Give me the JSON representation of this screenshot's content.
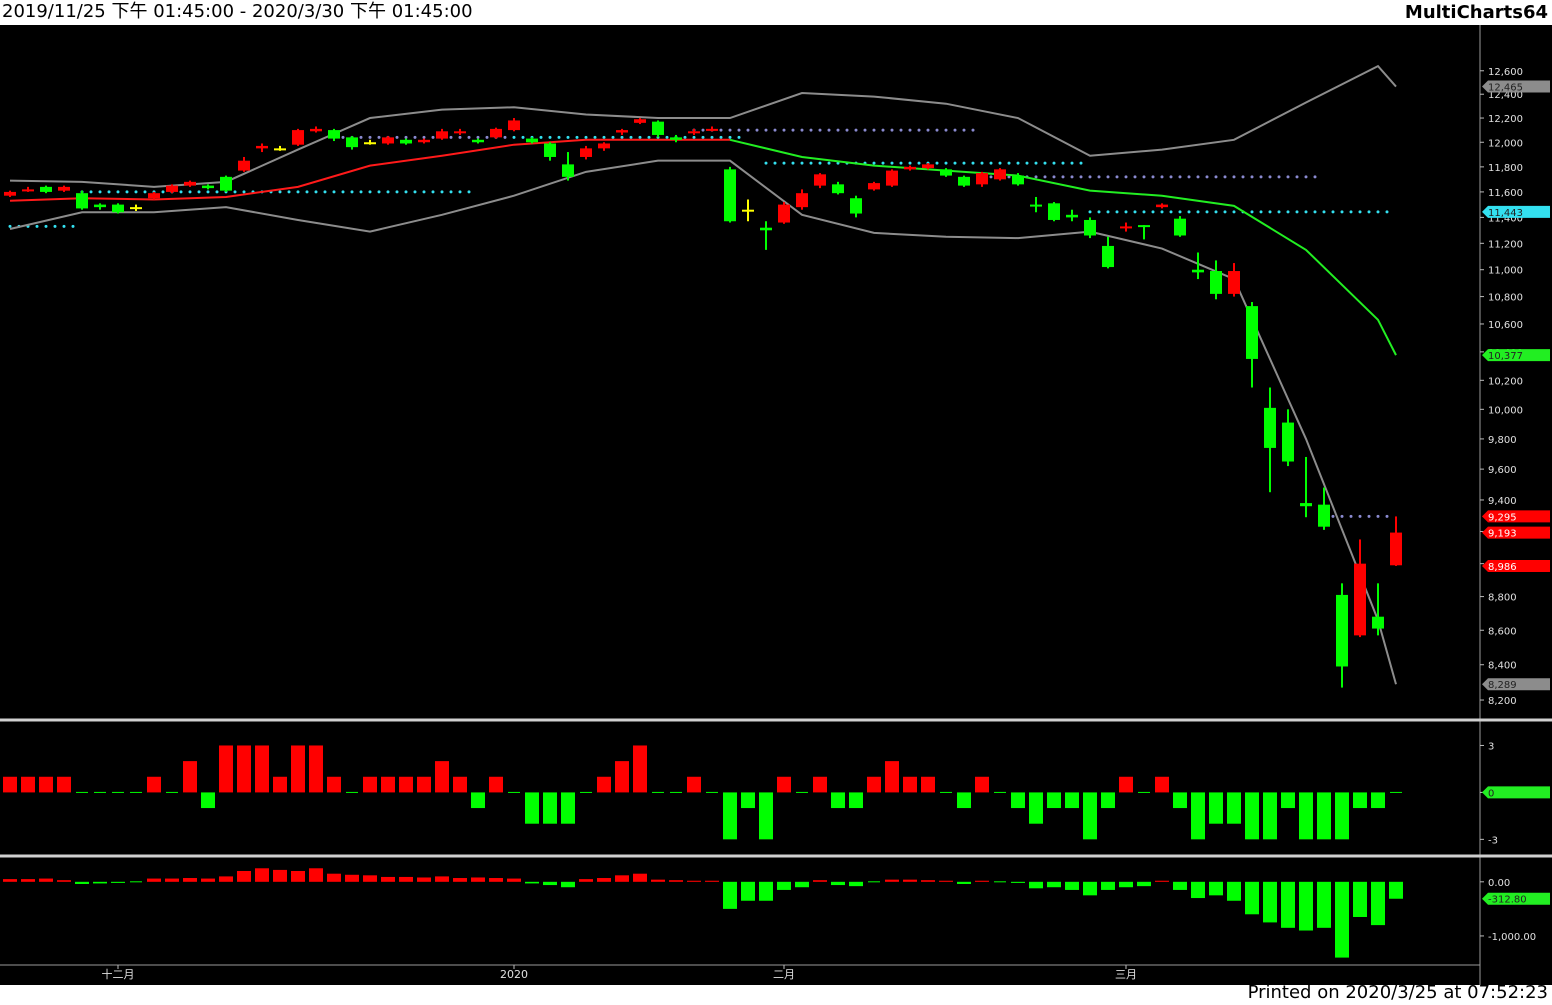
{
  "header": {
    "range": "2019/11/25 下午 01:45:00 - 2020/3/30 下午 01:45:00",
    "app": "MultiCharts64"
  },
  "footer": "Printed on 2020/3/25 at 07:52:23",
  "chart_data": [
    {
      "type": "candlestick",
      "log_scale": true,
      "ylim": [
        8100,
        13000
      ],
      "yticks": [
        {
          "value": 12600,
          "label": "12,600"
        },
        {
          "value": 12400,
          "label": "12,400"
        },
        {
          "value": 12200,
          "label": "12,200"
        },
        {
          "value": 12000,
          "label": "12,000"
        },
        {
          "value": 11800,
          "label": "11,800"
        },
        {
          "value": 11600,
          "label": "11,600"
        },
        {
          "value": 11400,
          "label": "11,400"
        },
        {
          "value": 11200,
          "label": "11,200"
        },
        {
          "value": 11000,
          "label": "11,000"
        },
        {
          "value": 10800,
          "label": "10,800"
        },
        {
          "value": 10600,
          "label": "10,600"
        },
        {
          "value": 10400,
          "label": "10,400"
        },
        {
          "value": 10200,
          "label": "10,200"
        },
        {
          "value": 10000,
          "label": "10,000"
        },
        {
          "value": 9800,
          "label": "9,800"
        },
        {
          "value": 9600,
          "label": "9,600"
        },
        {
          "value": 9400,
          "label": "9,400"
        },
        {
          "value": 9200,
          "label": "9,200"
        },
        {
          "value": 9000,
          "label": "9,000"
        },
        {
          "value": 8800,
          "label": "8,800"
        },
        {
          "value": 8600,
          "label": "8,600"
        },
        {
          "value": 8400,
          "label": "8,400"
        },
        {
          "value": 8200,
          "label": "8,200"
        }
      ],
      "categories": [
        null,
        null,
        null,
        null,
        null,
        null,
        "十二月",
        null,
        null,
        null,
        null,
        null,
        null,
        null,
        null,
        null,
        null,
        null,
        null,
        null,
        null,
        null,
        null,
        null,
        null,
        null,
        null,
        null,
        "2020",
        null,
        null,
        null,
        null,
        null,
        null,
        null,
        null,
        null,
        null,
        null,
        null,
        null,
        null,
        "二月",
        null,
        null,
        null,
        null,
        null,
        null,
        null,
        null,
        null,
        null,
        null,
        null,
        null,
        null,
        null,
        null,
        null,
        null,
        "三月",
        null,
        null,
        null,
        null,
        null,
        null,
        null,
        null,
        null,
        null,
        null,
        null,
        null,
        null,
        null
      ],
      "open": [
        11570,
        11610,
        11640,
        11610,
        11590,
        11500,
        11500,
        11480,
        11550,
        11600,
        11650,
        11650,
        11720,
        11770,
        11950,
        11950,
        11980,
        12090,
        12100,
        12040,
        12000,
        11990,
        12020,
        12000,
        12030,
        12080,
        12020,
        12040,
        12100,
        12030,
        11990,
        11820,
        11880,
        11950,
        12080,
        12160,
        12170,
        12040,
        12080,
        12100,
        11780,
        11460,
        11320,
        11360,
        11480,
        11650,
        11660,
        11550,
        11620,
        11650,
        11780,
        11790,
        11780,
        11720,
        11660,
        11700,
        11730,
        11500,
        11510,
        11420,
        11380,
        11180,
        11320,
        11340,
        11480,
        11390,
        11000,
        10990,
        10820,
        10730,
        10010,
        9910,
        9380,
        9370,
        8810,
        8570,
        8680,
        8990
      ],
      "high": [
        11610,
        11640,
        11650,
        11650,
        11610,
        11510,
        11510,
        11500,
        11600,
        11660,
        11690,
        11660,
        11730,
        11880,
        11990,
        11970,
        12110,
        12130,
        12110,
        12050,
        12020,
        12050,
        12030,
        12030,
        12110,
        12110,
        12030,
        12120,
        12200,
        12040,
        12000,
        11920,
        11970,
        12000,
        12110,
        12200,
        12180,
        12060,
        12110,
        12130,
        11800,
        11540,
        11370,
        11520,
        11620,
        11750,
        11680,
        11570,
        11680,
        11780,
        11810,
        11830,
        11790,
        11730,
        11760,
        11790,
        11750,
        11560,
        11520,
        11460,
        11400,
        11250,
        11360,
        11340,
        11510,
        11410,
        11130,
        11070,
        11050,
        10760,
        10150,
        10000,
        9680,
        9480,
        8880,
        9150,
        8880,
        9295
      ],
      "low": [
        11560,
        11600,
        11590,
        11600,
        11460,
        11460,
        11430,
        11450,
        11540,
        11590,
        11640,
        11620,
        11600,
        11760,
        11920,
        11930,
        11970,
        12080,
        12010,
        11940,
        11980,
        11980,
        11980,
        11990,
        12020,
        12060,
        11990,
        12030,
        12090,
        11990,
        11850,
        11690,
        11860,
        11930,
        12060,
        12150,
        12040,
        12000,
        12060,
        12090,
        11360,
        11370,
        11150,
        11350,
        11460,
        11630,
        11580,
        11400,
        11610,
        11640,
        11770,
        11780,
        11720,
        11640,
        11640,
        11690,
        11650,
        11440,
        11370,
        11370,
        11240,
        11010,
        11290,
        11230,
        11470,
        11250,
        10930,
        10780,
        10800,
        10150,
        9450,
        9620,
        9290,
        9210,
        8270,
        8560,
        8570,
        8986
      ],
      "close": [
        11600,
        11620,
        11600,
        11640,
        11470,
        11480,
        11440,
        11480,
        11590,
        11650,
        11680,
        11630,
        11610,
        11850,
        11970,
        11950,
        12100,
        12110,
        12030,
        11960,
        12000,
        12040,
        11990,
        12020,
        12090,
        12090,
        12000,
        12110,
        12180,
        12000,
        11880,
        11720,
        11950,
        11990,
        12100,
        12190,
        12060,
        12020,
        12090,
        12110,
        11370,
        11460,
        11300,
        11500,
        11590,
        11740,
        11590,
        11430,
        11670,
        11770,
        11800,
        11820,
        11730,
        11650,
        11750,
        11780,
        11660,
        11490,
        11380,
        11400,
        11260,
        11020,
        11330,
        11330,
        11500,
        11260,
        10980,
        10820,
        10990,
        10350,
        9740,
        9650,
        9360,
        9230,
        8390,
        9000,
        8610,
        9193
      ],
      "up_color": "#ff0000",
      "down_color": "#00ff00",
      "flat_color": "#ffff00",
      "lines": [
        {
          "color": "#8c8c8c",
          "x": [
            0,
            4,
            8,
            12,
            16,
            20,
            24,
            28,
            32,
            36,
            40,
            44,
            48,
            52,
            56,
            60,
            64,
            68,
            72,
            76,
            77
          ],
          "values": [
            11690,
            11680,
            11640,
            11680,
            11940,
            12200,
            12270,
            12290,
            12230,
            12200,
            12200,
            12410,
            12380,
            12320,
            12200,
            11890,
            11940,
            12020,
            12330,
            12640,
            12465
          ]
        },
        {
          "color": "#ff1a1a",
          "x": [
            0,
            4,
            8,
            12,
            16,
            20,
            24,
            28,
            32,
            36,
            40
          ],
          "values": [
            11530,
            11550,
            11540,
            11560,
            11640,
            11810,
            11890,
            11980,
            12020,
            12020,
            12020
          ]
        },
        {
          "color": "#22ee22",
          "x": [
            40,
            44,
            48,
            52,
            56,
            60,
            64,
            68,
            72,
            76,
            77
          ],
          "values": [
            12020,
            11880,
            11810,
            11770,
            11730,
            11610,
            11570,
            11490,
            11150,
            10630,
            10377
          ]
        },
        {
          "color": "#8c8c8c",
          "x": [
            0,
            4,
            8,
            12,
            16,
            20,
            24,
            28,
            32,
            36,
            40,
            44,
            48,
            52,
            56,
            60,
            64,
            68,
            72,
            76,
            77
          ],
          "values": [
            11310,
            11440,
            11440,
            11480,
            11380,
            11290,
            11420,
            11570,
            11760,
            11850,
            11850,
            11420,
            11280,
            11250,
            11240,
            11290,
            11160,
            10930,
            9800,
            8660,
            8289
          ]
        }
      ],
      "dotted": [
        {
          "color": "#33e0f0",
          "from": 0,
          "to": 4,
          "value": 11330
        },
        {
          "color": "#33e0f0",
          "from": 4,
          "to": 26,
          "value": 11600
        },
        {
          "color": "#8a8ad0",
          "from": 18,
          "to": 28,
          "value": 12040
        },
        {
          "color": "#33e0f0",
          "from": 28,
          "to": 41,
          "value": 12040
        },
        {
          "color": "#8a8ad0",
          "from": 38,
          "to": 54,
          "value": 12100
        },
        {
          "color": "#33e0f0",
          "from": 42,
          "to": 60,
          "value": 11830
        },
        {
          "color": "#8a8ad0",
          "from": 54,
          "to": 73,
          "value": 11720
        },
        {
          "color": "#33e0f0",
          "from": 60,
          "to": 77,
          "value": 11443
        },
        {
          "color": "#8a8ad0",
          "from": 73,
          "to": 77,
          "value": 9295
        }
      ],
      "markers": [
        {
          "value": 12465,
          "label": "12,465",
          "color": "#8c8c8c"
        },
        {
          "value": 11443,
          "label": "11,443",
          "color": "#33e0f0"
        },
        {
          "value": 10377,
          "label": "10,377",
          "color": "#22ee22"
        },
        {
          "value": 9295,
          "label": "9,295",
          "color": "#ff0000"
        },
        {
          "value": 9193,
          "label": "9,193",
          "color": "#ff0000"
        },
        {
          "value": 8986,
          "label": "8,986",
          "color": "#ff0000"
        },
        {
          "value": 8289,
          "label": "8,289",
          "color": "#8c8c8c"
        }
      ]
    },
    {
      "type": "bar",
      "ylim": [
        -4,
        4.5
      ],
      "yticks": [
        3,
        0,
        -3
      ],
      "pos_color": "#ff0000",
      "neg_color": "#00ff00",
      "values": [
        1,
        1,
        1,
        1,
        0,
        0,
        0,
        0,
        1,
        0,
        2,
        -1,
        3,
        3,
        3,
        1,
        3,
        3,
        1,
        0,
        1,
        1,
        1,
        1,
        2,
        1,
        -1,
        1,
        0,
        -2,
        -2,
        -2,
        0,
        1,
        2,
        3,
        0,
        0,
        1,
        0,
        -3,
        -1,
        -3,
        1,
        0,
        1,
        -1,
        -1,
        1,
        2,
        1,
        1,
        0,
        -1,
        1,
        0,
        -1,
        -2,
        -1,
        -1,
        -3,
        -1,
        1,
        0,
        1,
        -1,
        -3,
        -2,
        -2,
        -3,
        -3,
        -1,
        -3,
        -3,
        -3,
        -1,
        -1,
        0
      ],
      "markers": [
        {
          "value": 0,
          "color": "#22ee22"
        }
      ]
    },
    {
      "type": "bar",
      "ylim": [
        -1500,
        440
      ],
      "yticks": [
        {
          "value": 0,
          "label": "0.00"
        },
        {
          "value": -1000,
          "label": "-1,000.00"
        }
      ],
      "pos_color": "#ff0000",
      "neg_color": "#00ff00",
      "values": [
        50,
        50,
        60,
        30,
        -40,
        -30,
        -20,
        0,
        60,
        60,
        70,
        60,
        100,
        200,
        250,
        220,
        200,
        250,
        150,
        130,
        120,
        90,
        90,
        80,
        100,
        70,
        80,
        70,
        60,
        -30,
        -60,
        -100,
        50,
        70,
        120,
        150,
        40,
        30,
        20,
        20,
        -500,
        -350,
        -350,
        -150,
        -100,
        30,
        -60,
        -80,
        0,
        40,
        40,
        30,
        20,
        -40,
        20,
        0,
        -20,
        -120,
        -100,
        -150,
        -250,
        -150,
        -100,
        -80,
        20,
        -150,
        -300,
        -250,
        -350,
        -600,
        -750,
        -850,
        -900,
        -850,
        -1400,
        -650,
        -800,
        -312.8
      ],
      "markers": [
        {
          "value": -312.8,
          "label": "-312.80",
          "color": "#22ee22"
        }
      ]
    }
  ]
}
